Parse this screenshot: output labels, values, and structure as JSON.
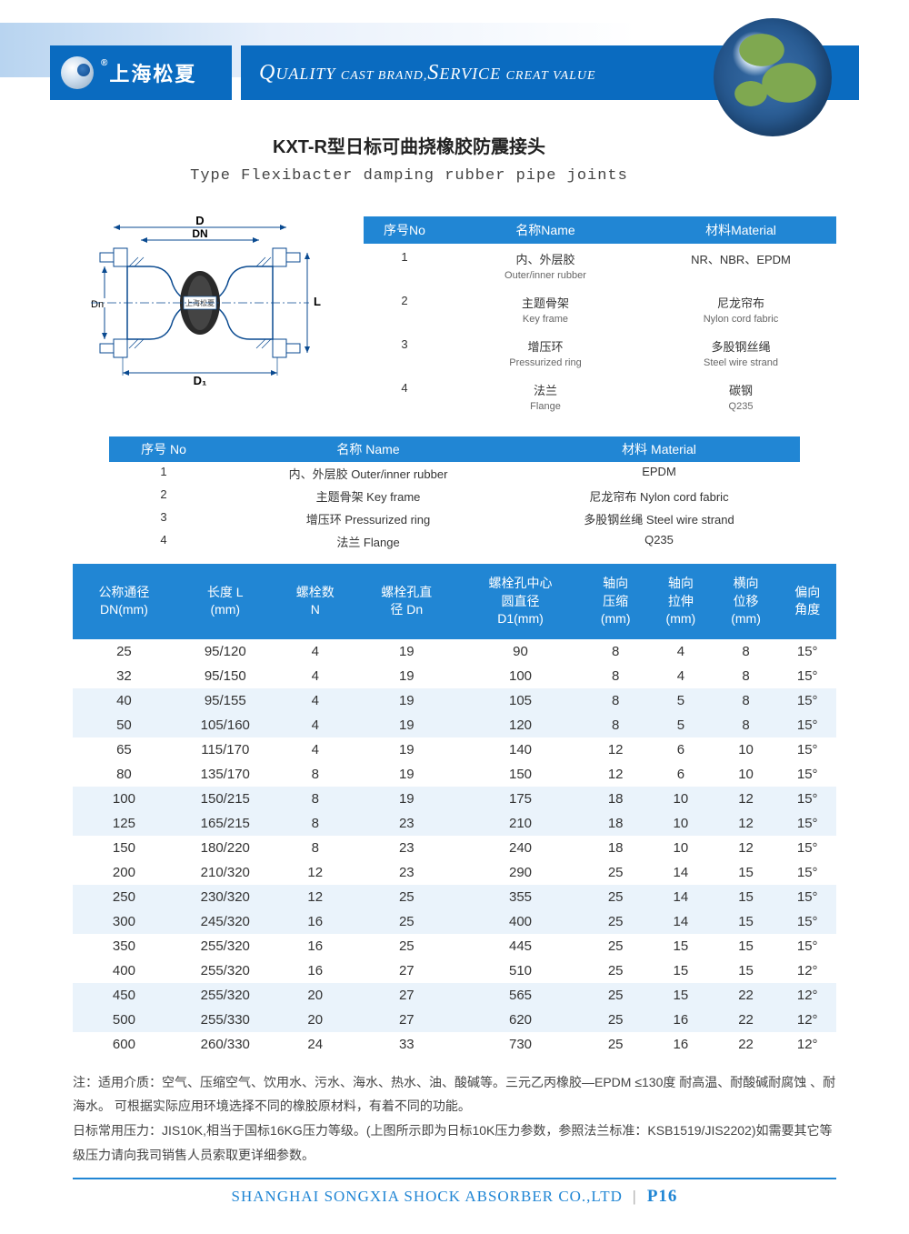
{
  "header": {
    "brand_cn": "上海松夏",
    "slogan_html": "QUALITY CAST BRAND,SERVICE CREAT VALUE"
  },
  "title": {
    "cn": "KXT-R型日标可曲挠橡胶防震接头",
    "en": "Type Flexibacter damping rubber pipe joints"
  },
  "diagram": {
    "labels": {
      "D": "D",
      "DN": "DN",
      "Dn": "Dn",
      "L": "L",
      "D1": "D₁",
      "brand": "上海松夏"
    }
  },
  "materials1": {
    "headers": {
      "no": "序号No",
      "name": "名称Name",
      "mat": "材料Material"
    },
    "rows": [
      {
        "no": "1",
        "name_cn": "内、外层胶",
        "name_en": "Outer/inner rubber",
        "mat_cn": "NR、NBR、EPDM",
        "mat_en": ""
      },
      {
        "no": "2",
        "name_cn": "主题骨架",
        "name_en": "Key frame",
        "mat_cn": "尼龙帘布",
        "mat_en": "Nylon cord fabric"
      },
      {
        "no": "3",
        "name_cn": "增压环",
        "name_en": "Pressurized ring",
        "mat_cn": "多股钢丝绳",
        "mat_en": "Steel wire strand"
      },
      {
        "no": "4",
        "name_cn": "法兰",
        "name_en": "Flange",
        "mat_cn": "碳钢",
        "mat_en": "Q235"
      }
    ]
  },
  "materials2": {
    "headers": {
      "no": "序号 No",
      "name": "名称 Name",
      "mat": "材料 Material"
    },
    "rows": [
      {
        "no": "1",
        "name": "内、外层胶  Outer/inner rubber",
        "mat": "EPDM"
      },
      {
        "no": "2",
        "name": "主题骨架  Key frame",
        "mat": "尼龙帘布  Nylon cord fabric"
      },
      {
        "no": "3",
        "name": "增压环  Pressurized ring",
        "mat": "多股钢丝绳  Steel wire strand"
      },
      {
        "no": "4",
        "name": "法兰  Flange",
        "mat": "Q235"
      }
    ]
  },
  "spec": {
    "headers": [
      "公称通径\nDN(mm)",
      "长度 L\n(mm)",
      "螺栓数\nN",
      "螺栓孔直\n径 Dn",
      "螺栓孔中心\n圆直径\nD1(mm)",
      "轴向\n压缩\n(mm)",
      "轴向\n拉伸\n(mm)",
      "横向\n位移\n(mm)",
      "偏向\n角度"
    ],
    "rows": [
      [
        "25",
        "95/120",
        "4",
        "19",
        "90",
        "8",
        "4",
        "8",
        "15°"
      ],
      [
        "32",
        "95/150",
        "4",
        "19",
        "100",
        "8",
        "4",
        "8",
        "15°"
      ],
      [
        "40",
        "95/155",
        "4",
        "19",
        "105",
        "8",
        "5",
        "8",
        "15°"
      ],
      [
        "50",
        "105/160",
        "4",
        "19",
        "120",
        "8",
        "5",
        "8",
        "15°"
      ],
      [
        "65",
        "115/170",
        "4",
        "19",
        "140",
        "12",
        "6",
        "10",
        "15°"
      ],
      [
        "80",
        "135/170",
        "8",
        "19",
        "150",
        "12",
        "6",
        "10",
        "15°"
      ],
      [
        "100",
        "150/215",
        "8",
        "19",
        "175",
        "18",
        "10",
        "12",
        "15°"
      ],
      [
        "125",
        "165/215",
        "8",
        "23",
        "210",
        "18",
        "10",
        "12",
        "15°"
      ],
      [
        "150",
        "180/220",
        "8",
        "23",
        "240",
        "18",
        "10",
        "12",
        "15°"
      ],
      [
        "200",
        "210/320",
        "12",
        "23",
        "290",
        "25",
        "14",
        "15",
        "15°"
      ],
      [
        "250",
        "230/320",
        "12",
        "25",
        "355",
        "25",
        "14",
        "15",
        "15°"
      ],
      [
        "300",
        "245/320",
        "16",
        "25",
        "400",
        "25",
        "14",
        "15",
        "15°"
      ],
      [
        "350",
        "255/320",
        "16",
        "25",
        "445",
        "25",
        "15",
        "15",
        "15°"
      ],
      [
        "400",
        "255/320",
        "16",
        "27",
        "510",
        "25",
        "15",
        "15",
        "12°"
      ],
      [
        "450",
        "255/320",
        "20",
        "27",
        "565",
        "25",
        "15",
        "22",
        "12°"
      ],
      [
        "500",
        "255/330",
        "20",
        "27",
        "620",
        "25",
        "16",
        "22",
        "12°"
      ],
      [
        "600",
        "260/330",
        "24",
        "33",
        "730",
        "25",
        "16",
        "22",
        "12°"
      ]
    ],
    "alt_pattern": [
      0,
      0,
      1,
      1,
      0,
      0,
      1,
      1,
      0,
      0,
      1,
      1,
      0,
      0,
      1,
      1,
      0
    ]
  },
  "notes": {
    "line1": "注：适用介质：空气、压缩空气、饮用水、污水、海水、热水、油、酸碱等。三元乙丙橡胶—EPDM ≤130度 耐高温、耐酸碱耐腐蚀 、耐海水。 可根据实际应用环境选择不同的橡胶原材料，有着不同的功能。",
    "line2": "日标常用压力：JIS10K,相当于国标16KG压力等级。(上图所示即为日标10K压力参数，参照法兰标准：KSB1519/JIS2202)如需要其它等级压力请向我司销售人员索取更详细参数。"
  },
  "footer": {
    "company": "SHANGHAI SONGXIA SHOCK ABSORBER CO.,LTD",
    "page": "P16"
  },
  "colors": {
    "brand_blue": "#0a6bc0",
    "table_blue": "#2186d4",
    "alt_row": "#eaf3fb"
  }
}
